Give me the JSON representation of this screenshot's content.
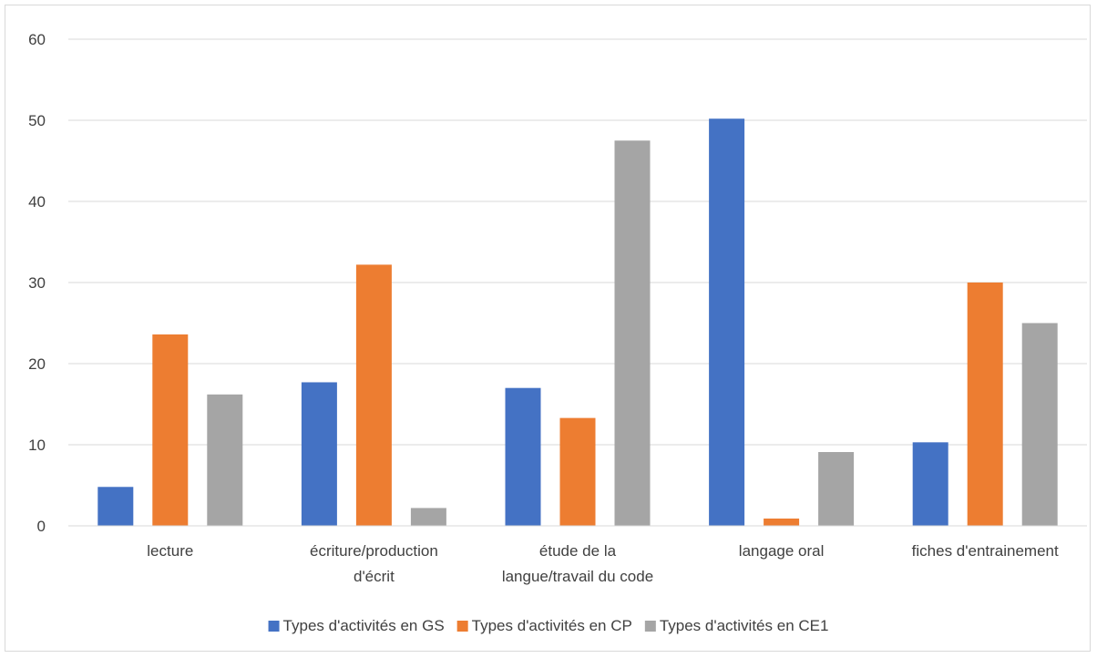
{
  "chart_data": {
    "type": "bar",
    "title": "",
    "xlabel": "",
    "ylabel": "",
    "ylim": [
      0,
      60
    ],
    "yticks": [
      0,
      10,
      20,
      30,
      40,
      50,
      60
    ],
    "grid": true,
    "legend_position": "bottom",
    "categories": [
      [
        "lecture"
      ],
      [
        "écriture/production",
        "d'écrit"
      ],
      [
        "étude de la",
        "langue/travail du code"
      ],
      [
        "langage oral"
      ],
      [
        "fiches d'entrainement"
      ]
    ],
    "series": [
      {
        "name": "Types d'activités en GS",
        "color": "#4472C4",
        "values": [
          4.8,
          17.7,
          17.0,
          50.2,
          10.3
        ]
      },
      {
        "name": "Types d'activités en CP",
        "color": "#ED7D31",
        "values": [
          23.6,
          32.2,
          13.3,
          0.9,
          30.0
        ]
      },
      {
        "name": "Types d'activités en CE1",
        "color": "#A5A5A5",
        "values": [
          16.2,
          2.2,
          47.5,
          9.1,
          25.0
        ]
      }
    ]
  }
}
